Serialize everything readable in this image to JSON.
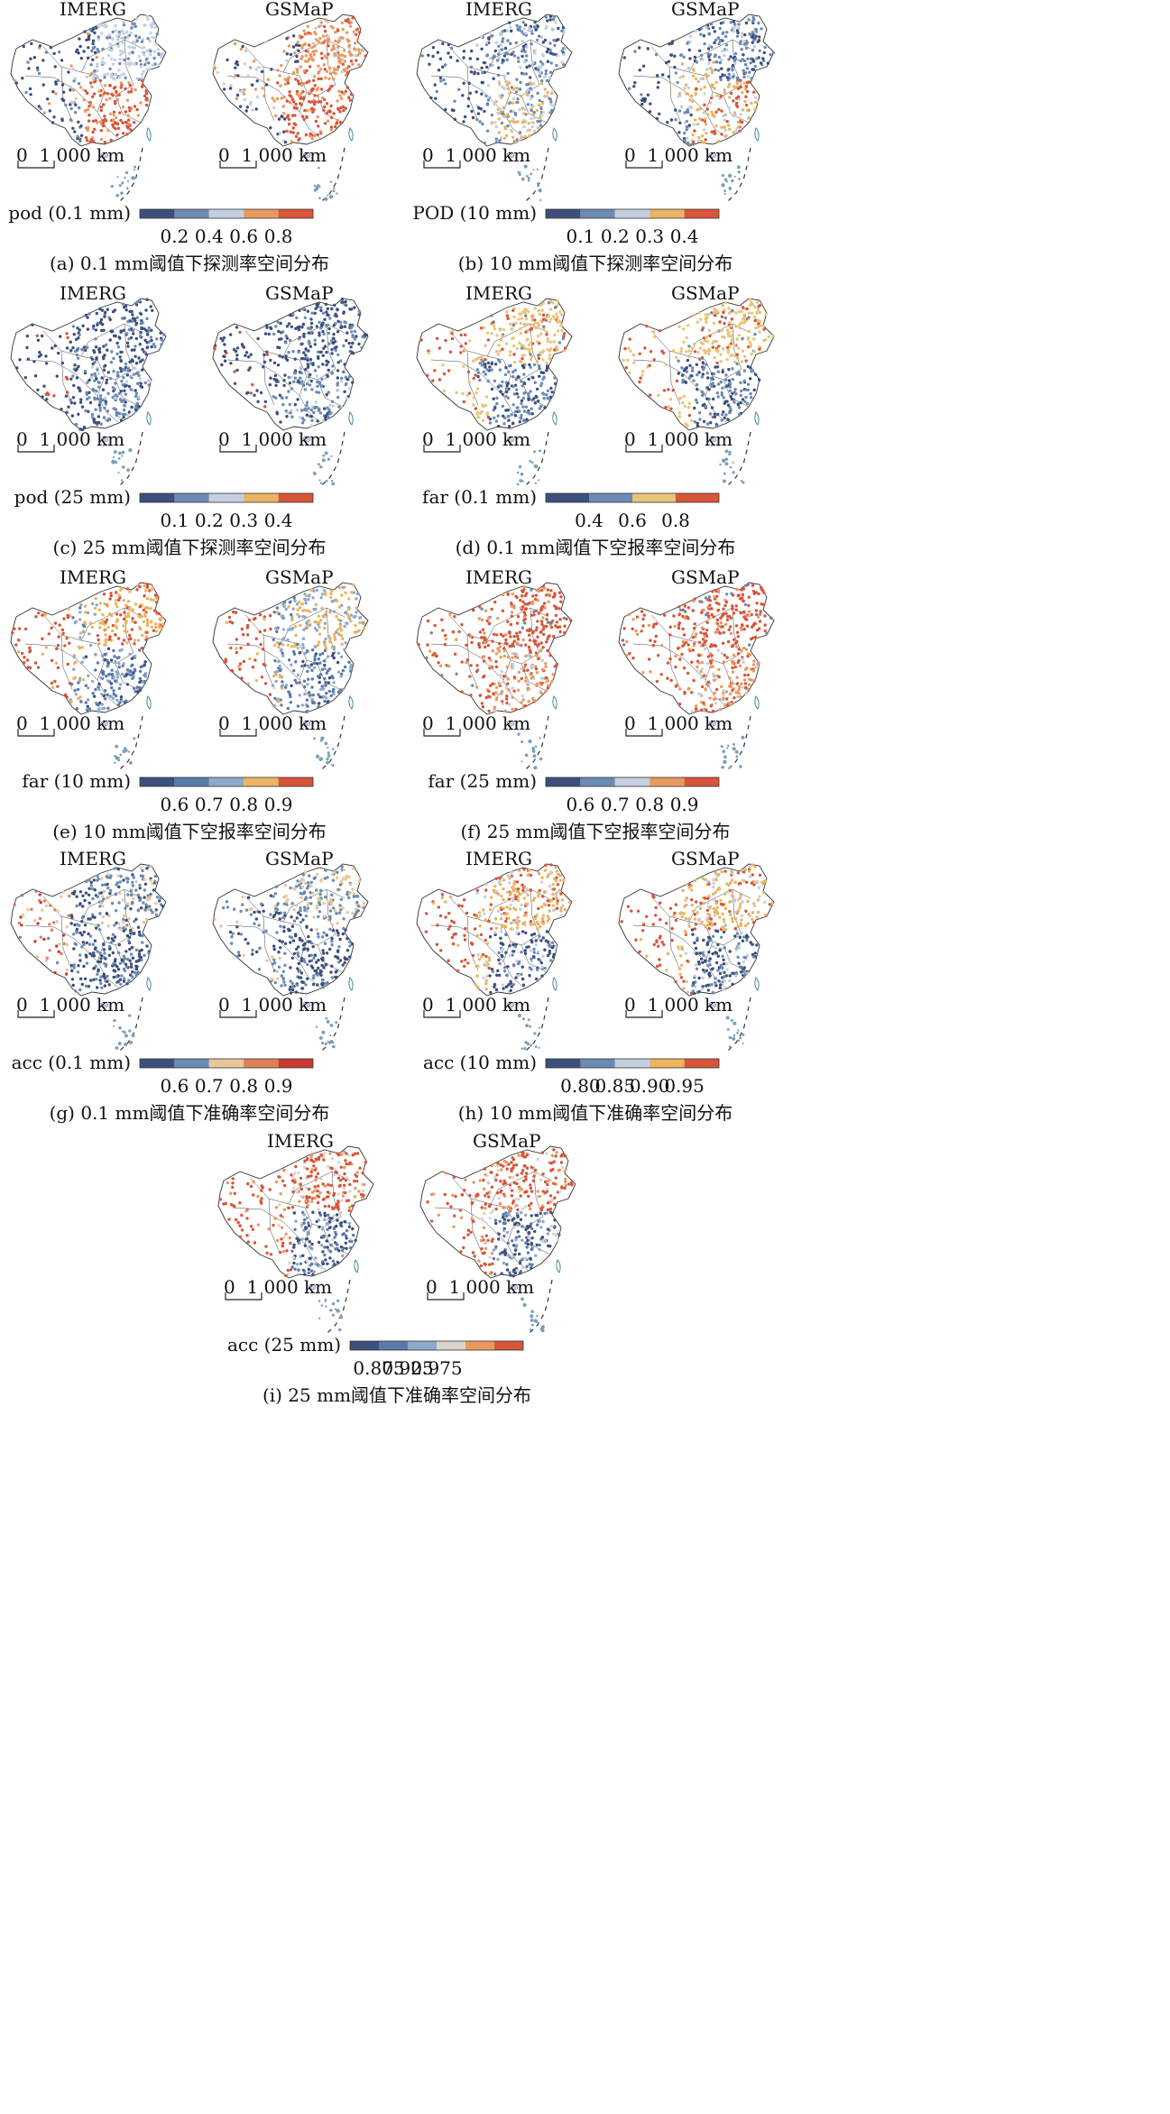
{
  "figure": {
    "panels": [
      {
        "id": "a",
        "caption": "(a) 0.1 mm阈值下探测率空间分布",
        "maps": [
          {
            "title": "IMERG",
            "pattern": "pod01_imerg"
          },
          {
            "title": "GSMaP",
            "pattern": "pod01_gsmap"
          }
        ],
        "scalebar": "0  1 000 km",
        "colorbar": {
          "label": "pod (0.1 mm)",
          "ticks": [
            "0.2",
            "0.4",
            "0.6",
            "0.8"
          ],
          "colors": [
            "#3d4f7c",
            "#6b8bb5",
            "#c5cfe0",
            "#e9995f",
            "#d9553a"
          ]
        }
      },
      {
        "id": "b",
        "caption": "(b) 10 mm阈值下探测率空间分布",
        "maps": [
          {
            "title": "IMERG",
            "pattern": "pod10_imerg"
          },
          {
            "title": "GSMaP",
            "pattern": "pod10_gsmap"
          }
        ],
        "scalebar": "0  1 000 km",
        "colorbar": {
          "label": "POD (10 mm)",
          "ticks": [
            "0.1",
            "0.2",
            "0.3",
            "0.4"
          ],
          "colors": [
            "#3d4f7c",
            "#6b8bb5",
            "#c5cfe0",
            "#eab462",
            "#d9553a"
          ]
        }
      },
      {
        "id": "c",
        "caption": "(c) 25 mm阈值下探测率空间分布",
        "maps": [
          {
            "title": "IMERG",
            "pattern": "pod25"
          },
          {
            "title": "GSMaP",
            "pattern": "pod25"
          }
        ],
        "scalebar": "0  1 000 km",
        "colorbar": {
          "label": "pod (25 mm)",
          "ticks": [
            "0.1",
            "0.2",
            "0.3",
            "0.4"
          ],
          "colors": [
            "#3d4f7c",
            "#6b8bb5",
            "#c5cfe0",
            "#eab462",
            "#d9553a"
          ]
        }
      },
      {
        "id": "d",
        "caption": "(d) 0.1 mm阈值下空报率空间分布",
        "maps": [
          {
            "title": "IMERG",
            "pattern": "far01"
          },
          {
            "title": "GSMaP",
            "pattern": "far01"
          }
        ],
        "scalebar": "0  1 000 km",
        "colorbar": {
          "label": "far (0.1 mm)",
          "ticks": [
            "0.4",
            "0.6",
            "0.8"
          ],
          "colors": [
            "#3d4f7c",
            "#6b8bb5",
            "#e9c57a",
            "#d9553a"
          ]
        }
      },
      {
        "id": "e",
        "caption": "(e) 10 mm阈值下空报率空间分布",
        "maps": [
          {
            "title": "IMERG",
            "pattern": "far10"
          },
          {
            "title": "GSMaP",
            "pattern": "far10b"
          }
        ],
        "scalebar": "0  1 000 km",
        "colorbar": {
          "label": "far (10 mm)",
          "ticks": [
            "0.6",
            "0.7",
            "0.8",
            "0.9"
          ],
          "colors": [
            "#3d4f7c",
            "#5a7aaa",
            "#8ea9c9",
            "#eab462",
            "#d9553a"
          ]
        }
      },
      {
        "id": "f",
        "caption": "(f) 25 mm阈值下空报率空间分布",
        "maps": [
          {
            "title": "IMERG",
            "pattern": "far25"
          },
          {
            "title": "GSMaP",
            "pattern": "far25"
          }
        ],
        "scalebar": "0  1 000 km",
        "colorbar": {
          "label": "far (25 mm)",
          "ticks": [
            "0.6",
            "0.7",
            "0.8",
            "0.9"
          ],
          "colors": [
            "#3d4f7c",
            "#6b8bb5",
            "#c5cfe0",
            "#e9995f",
            "#d9553a"
          ]
        }
      },
      {
        "id": "g",
        "caption": "(g) 0.1 mm阈值下准确率空间分布",
        "maps": [
          {
            "title": "IMERG",
            "pattern": "acc01_imerg"
          },
          {
            "title": "GSMaP",
            "pattern": "acc01_gsmap"
          }
        ],
        "scalebar": "0  1 000 km",
        "colorbar": {
          "label": "acc (0.1 mm)",
          "ticks": [
            "0.6",
            "0.7",
            "0.8",
            "0.9"
          ],
          "colors": [
            "#3d4f7c",
            "#6b8bb5",
            "#e6c79a",
            "#e08055",
            "#c93b2f"
          ]
        }
      },
      {
        "id": "h",
        "caption": "(h) 10 mm阈值下准确率空间分布",
        "maps": [
          {
            "title": "IMERG",
            "pattern": "acc10"
          },
          {
            "title": "GSMaP",
            "pattern": "acc10"
          }
        ],
        "scalebar": "0  1 000 km",
        "colorbar": {
          "label": "acc (10 mm)",
          "ticks": [
            "0.80",
            "0.85",
            "0.90",
            "0.95"
          ],
          "colors": [
            "#3d4f7c",
            "#6b8bb5",
            "#c5cfe0",
            "#eab462",
            "#d9553a"
          ]
        }
      },
      {
        "id": "i",
        "caption": "(i) 25 mm阈值下准确率空间分布",
        "maps": [
          {
            "title": "IMERG",
            "pattern": "acc25"
          },
          {
            "title": "GSMaP",
            "pattern": "acc25"
          }
        ],
        "scalebar": "0  1 000 km",
        "colorbar": {
          "label": "acc (25 mm)",
          "ticks": [
            "0.875",
            "0.925",
            "0.975"
          ],
          "colors": [
            "#3d4f7c",
            "#5a7aaa",
            "#8ea9c9",
            "#d8d4cc",
            "#e9995f",
            "#d9553a"
          ]
        }
      }
    ]
  }
}
